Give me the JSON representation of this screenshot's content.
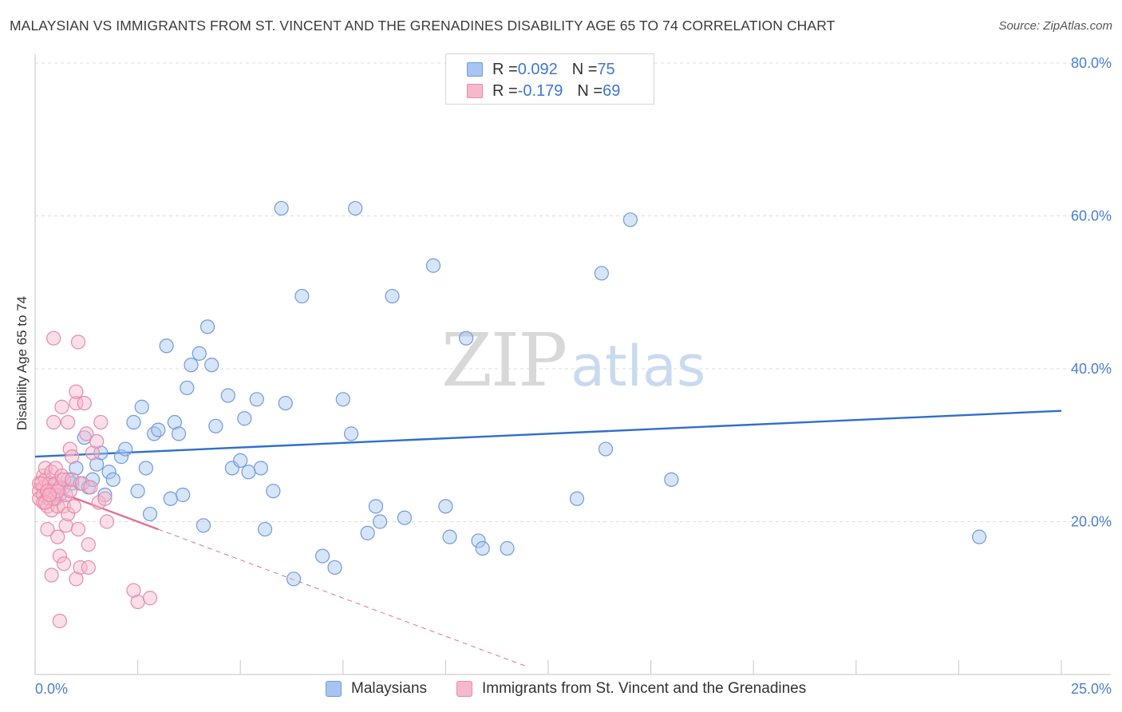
{
  "header": {
    "title": "MALAYSIAN VS IMMIGRANTS FROM ST. VINCENT AND THE GRENADINES DISABILITY AGE 65 TO 74 CORRELATION CHART",
    "source": "Source: ZipAtlas.com"
  },
  "watermark": {
    "zip": "ZIP",
    "atlas": "atlas"
  },
  "legend": {
    "rows": [
      {
        "r_label": "R = ",
        "r_value": "0.092",
        "n_label": "N = ",
        "n_value": "75",
        "color": "#a7c5f0",
        "border": "#6f9be0"
      },
      {
        "r_label": "R = ",
        "r_value": "-0.179",
        "n_label": "N = ",
        "n_value": "69",
        "color": "#f6b8cb",
        "border": "#e98aa8"
      }
    ]
  },
  "bottom_legend": [
    {
      "label": "Malaysians",
      "color": "#a7c5f0",
      "border": "#6f9be0"
    },
    {
      "label": "Immigrants from St. Vincent and the Grenadines",
      "color": "#f6b8cb",
      "border": "#e98aa8"
    }
  ],
  "chart_data": {
    "type": "scatter",
    "title": "MALAYSIAN VS IMMIGRANTS FROM ST. VINCENT AND THE GRENADINES DISABILITY AGE 65 TO 74 CORRELATION CHART",
    "xlabel": "",
    "ylabel": "Disability Age 65 to 74",
    "xlim": [
      0,
      25
    ],
    "ylim": [
      0,
      80
    ],
    "x_tick_labels": {
      "left": "0.0%",
      "right": "25.0%"
    },
    "y_ticks": [
      20,
      40,
      60,
      80
    ],
    "y_tick_labels": [
      "20.0%",
      "40.0%",
      "60.0%",
      "80.0%"
    ],
    "grid": "horizontal dashed",
    "colors": {
      "blue": "#4a86d8",
      "blue_fill": "#a7c5f0",
      "pink": "#e36f98",
      "pink_fill": "#f6b8cb",
      "tick_label": "#4a7fd0"
    },
    "series": [
      {
        "name": "Malaysians",
        "color": "#6f9be0",
        "fill": "#a7c5f0",
        "trend": {
          "x": [
            0,
            25
          ],
          "y": [
            28.5,
            34.5
          ],
          "style": "solid"
        },
        "points": [
          [
            0.3,
            23.5
          ],
          [
            0.4,
            24.0
          ],
          [
            0.5,
            23.0
          ],
          [
            0.5,
            25.0
          ],
          [
            0.6,
            23.5
          ],
          [
            0.7,
            24.5
          ],
          [
            0.8,
            25.5
          ],
          [
            0.9,
            25.0
          ],
          [
            1.0,
            27.0
          ],
          [
            1.1,
            25.0
          ],
          [
            1.2,
            31.0
          ],
          [
            1.3,
            24.5
          ],
          [
            1.4,
            25.5
          ],
          [
            1.5,
            27.5
          ],
          [
            1.6,
            29.0
          ],
          [
            1.7,
            23.5
          ],
          [
            1.8,
            26.5
          ],
          [
            1.9,
            25.5
          ],
          [
            2.1,
            28.5
          ],
          [
            2.2,
            29.5
          ],
          [
            2.4,
            33.0
          ],
          [
            2.5,
            24.0
          ],
          [
            2.6,
            35.0
          ],
          [
            2.7,
            27.0
          ],
          [
            2.8,
            21.0
          ],
          [
            2.9,
            31.5
          ],
          [
            3.0,
            32.0
          ],
          [
            3.2,
            43.0
          ],
          [
            3.3,
            23.0
          ],
          [
            3.4,
            33.0
          ],
          [
            3.5,
            31.5
          ],
          [
            3.6,
            23.5
          ],
          [
            3.7,
            37.5
          ],
          [
            3.8,
            40.5
          ],
          [
            4.0,
            42.0
          ],
          [
            4.1,
            19.5
          ],
          [
            4.2,
            45.5
          ],
          [
            4.3,
            40.5
          ],
          [
            4.4,
            32.5
          ],
          [
            4.7,
            36.5
          ],
          [
            4.8,
            27.0
          ],
          [
            5.0,
            28.0
          ],
          [
            5.1,
            33.5
          ],
          [
            5.2,
            26.5
          ],
          [
            5.4,
            36.0
          ],
          [
            5.5,
            27.0
          ],
          [
            5.6,
            19.0
          ],
          [
            5.8,
            24.0
          ],
          [
            6.0,
            61.0
          ],
          [
            6.1,
            35.5
          ],
          [
            6.3,
            12.5
          ],
          [
            6.5,
            49.5
          ],
          [
            7.0,
            15.5
          ],
          [
            7.3,
            14.0
          ],
          [
            7.5,
            36.0
          ],
          [
            7.7,
            31.5
          ],
          [
            7.8,
            61.0
          ],
          [
            8.1,
            18.5
          ],
          [
            8.3,
            22.0
          ],
          [
            8.4,
            20.0
          ],
          [
            8.7,
            49.5
          ],
          [
            9.0,
            20.5
          ],
          [
            9.7,
            53.5
          ],
          [
            10.0,
            22.0
          ],
          [
            10.1,
            18.0
          ],
          [
            10.5,
            44.0
          ],
          [
            10.8,
            17.5
          ],
          [
            10.9,
            16.5
          ],
          [
            11.5,
            16.5
          ],
          [
            13.2,
            23.0
          ],
          [
            13.8,
            52.5
          ],
          [
            13.9,
            29.5
          ],
          [
            14.5,
            59.5
          ],
          [
            15.5,
            25.5
          ],
          [
            23.0,
            18.0
          ]
        ]
      },
      {
        "name": "Immigrants from St. Vincent and the Grenadines",
        "color": "#e98aa8",
        "fill": "#f6b8cb",
        "trend": {
          "x": [
            0,
            3.0
          ],
          "y": [
            25.0,
            19.0
          ],
          "style": "solid",
          "extended_x": [
            3.0,
            12.0
          ],
          "extended_y": [
            19.0,
            1.0
          ],
          "extended_style": "dashed"
        },
        "points": [
          [
            0.1,
            24.0
          ],
          [
            0.1,
            25.0
          ],
          [
            0.1,
            23.0
          ],
          [
            0.2,
            26.0
          ],
          [
            0.2,
            24.5
          ],
          [
            0.2,
            23.5
          ],
          [
            0.2,
            22.5
          ],
          [
            0.25,
            25.5
          ],
          [
            0.25,
            27.0
          ],
          [
            0.3,
            24.0
          ],
          [
            0.3,
            22.0
          ],
          [
            0.3,
            19.0
          ],
          [
            0.35,
            25.0
          ],
          [
            0.35,
            23.0
          ],
          [
            0.4,
            26.5
          ],
          [
            0.4,
            24.0
          ],
          [
            0.4,
            21.5
          ],
          [
            0.4,
            13.0
          ],
          [
            0.45,
            44.0
          ],
          [
            0.45,
            33.0
          ],
          [
            0.5,
            25.0
          ],
          [
            0.5,
            23.5
          ],
          [
            0.5,
            27.0
          ],
          [
            0.55,
            18.0
          ],
          [
            0.55,
            22.0
          ],
          [
            0.6,
            24.5
          ],
          [
            0.6,
            15.5
          ],
          [
            0.6,
            7.0
          ],
          [
            0.65,
            35.0
          ],
          [
            0.65,
            26.0
          ],
          [
            0.7,
            25.5
          ],
          [
            0.7,
            22.0
          ],
          [
            0.7,
            14.5
          ],
          [
            0.75,
            19.5
          ],
          [
            0.75,
            23.5
          ],
          [
            0.8,
            33.0
          ],
          [
            0.8,
            21.0
          ],
          [
            0.85,
            24.0
          ],
          [
            0.85,
            29.5
          ],
          [
            0.9,
            28.5
          ],
          [
            0.9,
            25.5
          ],
          [
            0.95,
            22.0
          ],
          [
            1.0,
            12.5
          ],
          [
            1.0,
            35.5
          ],
          [
            1.0,
            37.0
          ],
          [
            1.05,
            43.5
          ],
          [
            1.05,
            19.0
          ],
          [
            1.1,
            14.0
          ],
          [
            1.15,
            25.0
          ],
          [
            1.2,
            35.5
          ],
          [
            1.25,
            31.5
          ],
          [
            1.3,
            17.0
          ],
          [
            1.3,
            14.0
          ],
          [
            1.35,
            24.5
          ],
          [
            1.4,
            29.0
          ],
          [
            1.5,
            30.5
          ],
          [
            1.55,
            22.5
          ],
          [
            1.6,
            33.0
          ],
          [
            1.7,
            23.0
          ],
          [
            1.75,
            20.0
          ],
          [
            2.4,
            11.0
          ],
          [
            2.5,
            9.5
          ],
          [
            2.8,
            10.0
          ],
          [
            0.15,
            25.0
          ],
          [
            0.3,
            24.0
          ],
          [
            0.45,
            23.0
          ],
          [
            0.55,
            24.0
          ],
          [
            0.25,
            22.5
          ],
          [
            0.35,
            23.5
          ]
        ]
      }
    ]
  }
}
